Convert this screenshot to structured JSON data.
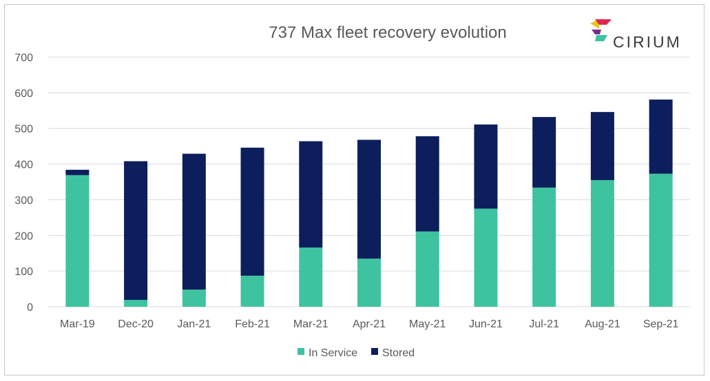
{
  "chart_data": {
    "type": "bar",
    "stacked": true,
    "title": "737 Max fleet recovery evolution",
    "xlabel": "",
    "ylabel": "",
    "categories": [
      "Mar-19",
      "Dec-20",
      "Jan-21",
      "Feb-21",
      "Mar-21",
      "Apr-21",
      "May-21",
      "Jun-21",
      "Jul-21",
      "Aug-21",
      "Sep-21"
    ],
    "series": [
      {
        "name": "In Service",
        "color": "#3ec3a0",
        "values": [
          369,
          19,
          48,
          87,
          166,
          135,
          211,
          275,
          334,
          355,
          373
        ]
      },
      {
        "name": "Stored",
        "color": "#0c1e5b",
        "values": [
          15,
          389,
          381,
          359,
          298,
          333,
          267,
          236,
          198,
          191,
          208
        ]
      }
    ],
    "ylim": [
      0,
      700
    ],
    "yticks": [
      "0",
      "100",
      "200",
      "300",
      "400",
      "500",
      "600",
      "700"
    ],
    "grid": true,
    "legend_position": "bottom"
  },
  "branding": {
    "logo_text": "CIRIUM",
    "logo_colors": [
      "#f0c419",
      "#e2264d",
      "#7b2c8f",
      "#3ec3a0"
    ]
  },
  "colors": {
    "gridline": "#d9d9d9",
    "axis_text": "#595959",
    "frame": "#c9c9c9"
  }
}
